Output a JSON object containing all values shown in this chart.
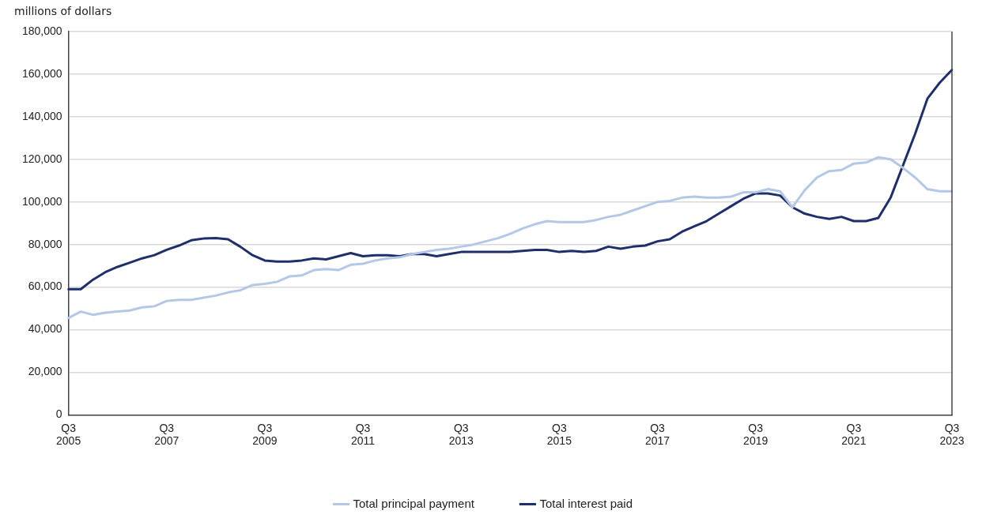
{
  "chart_data": {
    "type": "line",
    "ylabel": "millions of dollars",
    "categories": [
      "Q3 2005",
      null,
      null,
      null,
      null,
      null,
      null,
      null,
      "Q3 2007",
      null,
      null,
      null,
      null,
      null,
      null,
      null,
      "Q3 2009",
      null,
      null,
      null,
      null,
      null,
      null,
      null,
      "Q3 2011",
      null,
      null,
      null,
      null,
      null,
      null,
      null,
      "Q3 2013",
      null,
      null,
      null,
      null,
      null,
      null,
      null,
      "Q3 2015",
      null,
      null,
      null,
      null,
      null,
      null,
      null,
      "Q3 2017",
      null,
      null,
      null,
      null,
      null,
      null,
      null,
      "Q3 2019",
      null,
      null,
      null,
      null,
      null,
      null,
      null,
      "Q3 2021",
      null,
      null,
      null,
      null,
      null,
      null,
      null,
      "Q3 2023"
    ],
    "series": [
      {
        "name": "Total principal payment",
        "color": "#b4c7e7",
        "values": [
          45500,
          48500,
          47000,
          48000,
          48500,
          49000,
          50500,
          51000,
          53500,
          54000,
          54000,
          55000,
          56000,
          57500,
          58500,
          61000,
          61500,
          62500,
          65000,
          65500,
          68000,
          68500,
          68000,
          70500,
          71000,
          72500,
          73500,
          74000,
          75500,
          76500,
          77500,
          78000,
          79000,
          80000,
          81500,
          83000,
          85000,
          87500,
          89500,
          91000,
          90500,
          90500,
          90500,
          91500,
          93000,
          94000,
          96000,
          98000,
          100000,
          100500,
          102000,
          102500,
          102000,
          102000,
          102500,
          104500,
          104500,
          106000,
          105000,
          97500,
          105500,
          111500,
          114500,
          115000,
          118000,
          118500,
          121000,
          120000,
          116000,
          111500,
          106000,
          105000,
          105000
        ]
      },
      {
        "name": "Total interest paid",
        "color": "#1f2f6b",
        "values": [
          59000,
          59000,
          63500,
          67000,
          69500,
          71500,
          73500,
          75000,
          77500,
          79500,
          82000,
          82800,
          83000,
          82500,
          79000,
          75000,
          72500,
          72000,
          72000,
          72500,
          73500,
          73000,
          74500,
          76000,
          74500,
          75000,
          75000,
          74500,
          75500,
          75500,
          74500,
          75500,
          76500,
          76500,
          76500,
          76500,
          76500,
          77000,
          77500,
          77500,
          76500,
          77000,
          76500,
          77000,
          79000,
          78000,
          79000,
          79500,
          81500,
          82500,
          86000,
          88500,
          91000,
          94500,
          98000,
          101500,
          104000,
          104000,
          103000,
          97500,
          94500,
          93000,
          92000,
          93000,
          91000,
          91000,
          92500,
          102000,
          117000,
          132000,
          148500,
          156000,
          162000
        ]
      }
    ],
    "ylim": [
      0,
      180000
    ],
    "yticks": [
      0,
      {
        "value": 20000,
        "label": "20,000"
      },
      {
        "value": 40000,
        "label": "40,000"
      },
      {
        "value": 60000,
        "label": "60,000"
      },
      {
        "value": 80000,
        "label": "80,000"
      },
      {
        "value": 100000,
        "label": "100,000"
      },
      {
        "value": 120000,
        "label": "120,000"
      },
      {
        "value": 140000,
        "label": "140,000"
      },
      {
        "value": 160000,
        "label": "160,000"
      },
      {
        "value": 180000,
        "label": "180,000"
      }
    ],
    "grid": "y",
    "legend": "bottom",
    "marker": "none",
    "line_style": "solid"
  }
}
